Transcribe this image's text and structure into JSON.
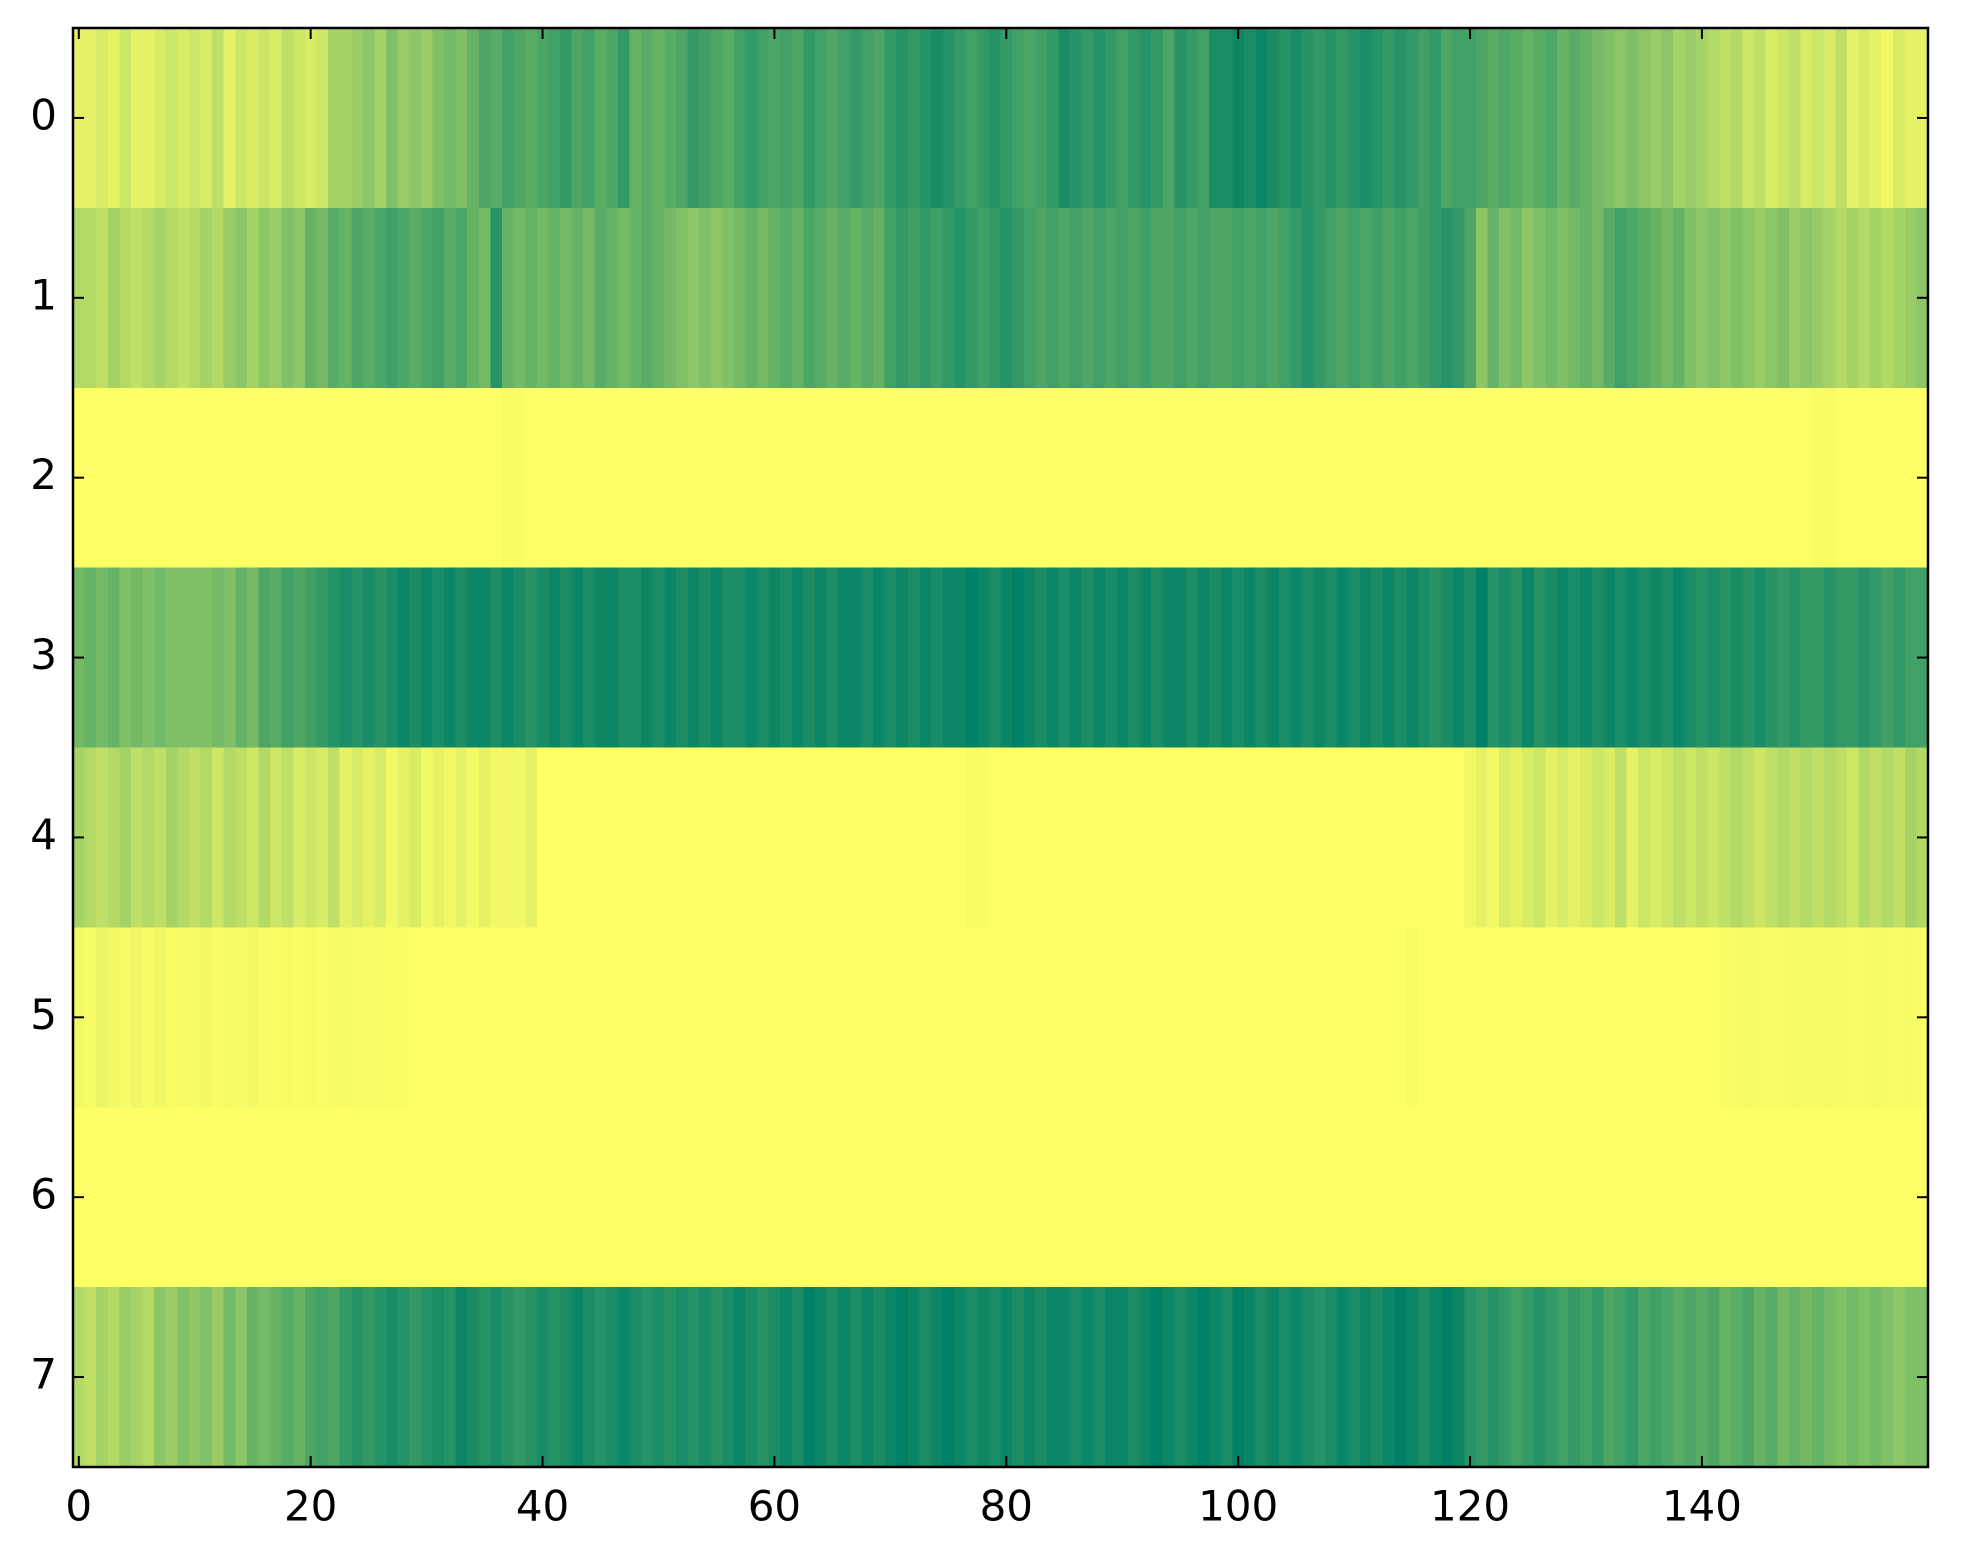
{
  "chart_data": {
    "type": "heatmap",
    "colormap": [
      "#ffff66",
      "#008066"
    ],
    "clim": [
      0,
      1
    ],
    "xlim": [
      -0.5,
      159.5
    ],
    "xticks": [
      0,
      20,
      40,
      60,
      80,
      100,
      120,
      140
    ],
    "ylim": [
      7.5,
      -0.5
    ],
    "yticks": [
      0,
      1,
      2,
      3,
      4,
      5,
      6,
      7
    ],
    "values": [
      [
        0.1,
        0.1,
        0.15,
        0.1,
        0.2,
        0.1,
        0.1,
        0.15,
        0.2,
        0.15,
        0.2,
        0.15,
        0.25,
        0.1,
        0.2,
        0.15,
        0.2,
        0.15,
        0.25,
        0.2,
        0.15,
        0.2,
        0.35,
        0.35,
        0.4,
        0.45,
        0.35,
        0.5,
        0.4,
        0.45,
        0.4,
        0.5,
        0.55,
        0.5,
        0.6,
        0.7,
        0.65,
        0.75,
        0.7,
        0.65,
        0.7,
        0.75,
        0.8,
        0.7,
        0.75,
        0.65,
        0.7,
        0.8,
        0.6,
        0.65,
        0.6,
        0.65,
        0.7,
        0.8,
        0.75,
        0.7,
        0.65,
        0.75,
        0.8,
        0.75,
        0.7,
        0.75,
        0.7,
        0.8,
        0.75,
        0.7,
        0.75,
        0.8,
        0.75,
        0.7,
        0.8,
        0.85,
        0.8,
        0.85,
        0.9,
        0.85,
        0.8,
        0.75,
        0.8,
        0.85,
        0.8,
        0.75,
        0.7,
        0.75,
        0.8,
        0.9,
        0.85,
        0.8,
        0.85,
        0.8,
        0.75,
        0.8,
        0.85,
        0.8,
        0.7,
        0.85,
        0.8,
        0.75,
        0.9,
        0.9,
        0.95,
        0.9,
        0.95,
        0.9,
        0.85,
        0.9,
        0.85,
        0.8,
        0.85,
        0.8,
        0.85,
        0.9,
        0.85,
        0.8,
        0.85,
        0.8,
        0.75,
        0.8,
        0.7,
        0.75,
        0.75,
        0.7,
        0.65,
        0.7,
        0.65,
        0.6,
        0.65,
        0.7,
        0.6,
        0.65,
        0.6,
        0.55,
        0.5,
        0.45,
        0.5,
        0.45,
        0.4,
        0.45,
        0.35,
        0.4,
        0.35,
        0.3,
        0.25,
        0.3,
        0.2,
        0.25,
        0.15,
        0.2,
        0.25,
        0.15,
        0.2,
        0.15,
        0.25,
        0.1,
        0.15,
        0.1,
        0.05,
        0.15,
        0.1,
        0.1
      ],
      [
        0.3,
        0.3,
        0.25,
        0.35,
        0.3,
        0.25,
        0.3,
        0.35,
        0.3,
        0.25,
        0.3,
        0.35,
        0.3,
        0.4,
        0.45,
        0.35,
        0.45,
        0.4,
        0.5,
        0.45,
        0.6,
        0.55,
        0.65,
        0.6,
        0.7,
        0.65,
        0.7,
        0.75,
        0.7,
        0.65,
        0.7,
        0.75,
        0.65,
        0.7,
        0.6,
        0.55,
        0.85,
        0.6,
        0.55,
        0.6,
        0.55,
        0.6,
        0.55,
        0.6,
        0.55,
        0.65,
        0.6,
        0.55,
        0.6,
        0.65,
        0.6,
        0.55,
        0.5,
        0.45,
        0.5,
        0.45,
        0.5,
        0.55,
        0.6,
        0.55,
        0.6,
        0.65,
        0.6,
        0.7,
        0.65,
        0.6,
        0.65,
        0.6,
        0.65,
        0.6,
        0.75,
        0.8,
        0.75,
        0.8,
        0.75,
        0.8,
        0.85,
        0.8,
        0.75,
        0.8,
        0.85,
        0.8,
        0.75,
        0.7,
        0.75,
        0.7,
        0.75,
        0.7,
        0.75,
        0.7,
        0.75,
        0.7,
        0.75,
        0.7,
        0.7,
        0.75,
        0.7,
        0.75,
        0.7,
        0.7,
        0.75,
        0.7,
        0.75,
        0.7,
        0.75,
        0.8,
        0.85,
        0.8,
        0.75,
        0.7,
        0.75,
        0.7,
        0.75,
        0.7,
        0.75,
        0.7,
        0.75,
        0.8,
        0.85,
        0.8,
        0.7,
        0.45,
        0.6,
        0.5,
        0.55,
        0.45,
        0.5,
        0.55,
        0.5,
        0.55,
        0.6,
        0.55,
        0.65,
        0.75,
        0.7,
        0.65,
        0.6,
        0.55,
        0.6,
        0.5,
        0.45,
        0.5,
        0.45,
        0.5,
        0.45,
        0.4,
        0.45,
        0.5,
        0.4,
        0.45,
        0.4,
        0.35,
        0.3,
        0.35,
        0.3,
        0.35,
        0.3,
        0.35,
        0.4,
        0.45
      ],
      [
        0,
        0,
        0,
        0,
        0,
        0,
        0,
        0,
        0,
        0,
        0,
        0,
        0,
        0,
        0,
        0,
        0,
        0,
        0,
        0,
        0,
        0,
        0,
        0,
        0,
        0,
        0,
        0,
        0,
        0,
        0,
        0,
        0,
        0,
        0,
        0,
        0,
        0.02,
        0.02,
        0,
        0,
        0,
        0,
        0,
        0,
        0,
        0,
        0,
        0,
        0,
        0,
        0,
        0,
        0,
        0,
        0,
        0,
        0,
        0,
        0,
        0,
        0,
        0,
        0,
        0,
        0,
        0,
        0,
        0,
        0,
        0,
        0,
        0,
        0,
        0,
        0,
        0,
        0,
        0,
        0,
        0,
        0,
        0,
        0,
        0,
        0,
        0,
        0,
        0,
        0,
        0,
        0,
        0,
        0,
        0,
        0,
        0,
        0,
        0,
        0,
        0,
        0,
        0,
        0,
        0,
        0,
        0,
        0,
        0,
        0,
        0,
        0,
        0,
        0,
        0,
        0,
        0,
        0,
        0,
        0,
        0,
        0,
        0,
        0,
        0,
        0,
        0,
        0,
        0,
        0,
        0,
        0,
        0,
        0,
        0,
        0,
        0,
        0,
        0,
        0,
        0,
        0,
        0,
        0,
        0,
        0,
        0,
        0,
        0,
        0,
        0.02,
        0.02,
        0,
        0,
        0,
        0,
        0,
        0,
        0,
        0
      ],
      [
        0.55,
        0.6,
        0.55,
        0.6,
        0.5,
        0.55,
        0.5,
        0.55,
        0.5,
        0.5,
        0.5,
        0.5,
        0.55,
        0.5,
        0.6,
        0.55,
        0.7,
        0.65,
        0.75,
        0.7,
        0.75,
        0.8,
        0.85,
        0.9,
        0.85,
        0.9,
        0.85,
        0.9,
        0.95,
        0.9,
        0.95,
        0.9,
        0.95,
        0.9,
        0.95,
        0.95,
        0.9,
        0.95,
        0.9,
        0.85,
        0.9,
        0.95,
        0.9,
        0.95,
        0.9,
        0.95,
        0.95,
        0.9,
        0.9,
        0.95,
        0.9,
        0.95,
        0.9,
        0.95,
        0.9,
        0.95,
        0.9,
        0.9,
        0.95,
        0.9,
        0.95,
        0.9,
        0.95,
        0.9,
        0.95,
        0.9,
        0.95,
        0.95,
        0.9,
        0.95,
        0.9,
        0.95,
        0.9,
        0.95,
        0.9,
        0.95,
        0.95,
        1,
        0.95,
        0.9,
        0.95,
        1,
        0.95,
        0.9,
        0.95,
        0.9,
        0.95,
        0.9,
        0.95,
        0.9,
        0.95,
        0.9,
        0.95,
        0.9,
        0.95,
        0.95,
        0.9,
        0.95,
        0.9,
        0.95,
        0.9,
        0.95,
        0.9,
        0.95,
        0.9,
        0.95,
        0.9,
        0.95,
        0.9,
        0.95,
        0.9,
        0.95,
        0.9,
        0.95,
        0.9,
        0.95,
        0.9,
        0.85,
        0.9,
        0.95,
        0.9,
        1,
        0.85,
        0.9,
        0.85,
        0.95,
        0.85,
        0.9,
        0.95,
        0.9,
        0.95,
        0.9,
        0.95,
        0.9,
        0.95,
        0.9,
        0.95,
        0.9,
        0.95,
        0.9,
        0.85,
        0.9,
        0.85,
        0.9,
        0.85,
        0.9,
        0.85,
        0.8,
        0.85,
        0.8,
        0.8,
        0.85,
        0.8,
        0.8,
        0.85,
        0.8,
        0.75,
        0.8,
        0.75,
        0.75
      ],
      [
        0.35,
        0.3,
        0.25,
        0.3,
        0.35,
        0.25,
        0.3,
        0.25,
        0.35,
        0.3,
        0.25,
        0.3,
        0.2,
        0.3,
        0.25,
        0.2,
        0.3,
        0.2,
        0.25,
        0.15,
        0.2,
        0.15,
        0.25,
        0.1,
        0.15,
        0.1,
        0.15,
        0.05,
        0.1,
        0.15,
        0.05,
        0.1,
        0.05,
        0.1,
        0.05,
        0.1,
        0.05,
        0.05,
        0.05,
        0.1,
        0,
        0,
        0,
        0,
        0,
        0,
        0,
        0,
        0,
        0,
        0,
        0,
        0,
        0,
        0,
        0,
        0,
        0,
        0,
        0,
        0,
        0,
        0,
        0,
        0,
        0,
        0,
        0,
        0,
        0,
        0,
        0,
        0,
        0,
        0,
        0,
        0,
        0.02,
        0.02,
        0,
        0,
        0,
        0,
        0,
        0,
        0,
        0,
        0,
        0,
        0,
        0,
        0,
        0,
        0,
        0,
        0,
        0,
        0,
        0,
        0,
        0,
        0,
        0,
        0,
        0,
        0,
        0,
        0,
        0,
        0,
        0,
        0,
        0,
        0,
        0,
        0,
        0,
        0,
        0,
        0,
        0.05,
        0.1,
        0.05,
        0.15,
        0.1,
        0.15,
        0.2,
        0.1,
        0.15,
        0.1,
        0.15,
        0.2,
        0.15,
        0.25,
        0.1,
        0.2,
        0.15,
        0.2,
        0.25,
        0.2,
        0.25,
        0.2,
        0.25,
        0.3,
        0.25,
        0.2,
        0.25,
        0.3,
        0.25,
        0.3,
        0.25,
        0.3,
        0.25,
        0.2,
        0.3,
        0.25,
        0.3,
        0.25,
        0.35,
        0.3
      ],
      [
        0.05,
        0.03,
        0.08,
        0.05,
        0.03,
        0.06,
        0.03,
        0.05,
        0.02,
        0.04,
        0.03,
        0.05,
        0.02,
        0.04,
        0.03,
        0.05,
        0.02,
        0.01,
        0.02,
        0.01,
        0.02,
        0.01,
        0.03,
        0.04,
        0.02,
        0.03,
        0.02,
        0.01,
        0.01,
        0,
        0,
        0,
        0,
        0,
        0,
        0,
        0,
        0,
        0,
        0,
        0,
        0,
        0,
        0,
        0,
        0,
        0,
        0,
        0,
        0,
        0,
        0,
        0,
        0,
        0,
        0,
        0,
        0,
        0,
        0,
        0,
        0,
        0,
        0,
        0,
        0,
        0,
        0,
        0,
        0,
        0,
        0,
        0,
        0,
        0,
        0,
        0,
        0,
        0,
        0,
        0,
        0,
        0,
        0,
        0,
        0,
        0,
        0,
        0,
        0,
        0,
        0,
        0,
        0,
        0,
        0,
        0,
        0,
        0,
        0,
        0,
        0,
        0,
        0,
        0,
        0,
        0,
        0,
        0,
        0,
        0,
        0,
        0,
        0,
        0,
        0.02,
        0,
        0,
        0,
        0,
        0,
        0,
        0,
        0,
        0,
        0,
        0,
        0,
        0,
        0,
        0,
        0,
        0,
        0,
        0,
        0,
        0,
        0,
        0,
        0,
        0,
        0,
        0.02,
        0.03,
        0.04,
        0.03,
        0.02,
        0.03,
        0.04,
        0.03,
        0.03,
        0.04,
        0.03,
        0.02,
        0.03,
        0.04,
        0.03,
        0.02,
        0.03,
        0.02
      ],
      [
        0,
        0,
        0,
        0,
        0,
        0,
        0,
        0,
        0,
        0,
        0,
        0,
        0,
        0,
        0,
        0,
        0,
        0,
        0,
        0,
        0,
        0,
        0,
        0,
        0,
        0,
        0,
        0,
        0,
        0,
        0,
        0,
        0,
        0,
        0,
        0,
        0,
        0,
        0,
        0,
        0,
        0,
        0,
        0,
        0,
        0,
        0,
        0,
        0,
        0,
        0,
        0,
        0,
        0,
        0,
        0,
        0,
        0,
        0,
        0,
        0,
        0,
        0,
        0,
        0,
        0,
        0,
        0,
        0,
        0,
        0,
        0,
        0,
        0,
        0,
        0,
        0,
        0,
        0,
        0,
        0,
        0,
        0,
        0,
        0,
        0,
        0,
        0,
        0,
        0,
        0,
        0,
        0,
        0,
        0,
        0,
        0,
        0,
        0,
        0,
        0,
        0,
        0,
        0,
        0,
        0,
        0,
        0,
        0,
        0,
        0,
        0,
        0,
        0,
        0,
        0,
        0,
        0,
        0,
        0,
        0,
        0,
        0,
        0,
        0,
        0,
        0,
        0,
        0,
        0,
        0,
        0,
        0,
        0,
        0,
        0,
        0,
        0,
        0,
        0,
        0,
        0,
        0,
        0,
        0,
        0,
        0,
        0,
        0,
        0,
        0,
        0,
        0,
        0,
        0,
        0,
        0,
        0,
        0,
        0
      ],
      [
        0.3,
        0.25,
        0.35,
        0.3,
        0.4,
        0.35,
        0.3,
        0.45,
        0.4,
        0.5,
        0.45,
        0.5,
        0.4,
        0.55,
        0.45,
        0.6,
        0.55,
        0.6,
        0.65,
        0.6,
        0.7,
        0.75,
        0.7,
        0.8,
        0.85,
        0.8,
        0.85,
        0.9,
        0.85,
        0.8,
        0.85,
        0.9,
        0.85,
        0.95,
        0.9,
        0.85,
        0.9,
        0.85,
        0.8,
        0.85,
        0.9,
        0.85,
        0.9,
        0.95,
        0.9,
        0.85,
        0.9,
        0.95,
        0.9,
        0.85,
        0.9,
        0.85,
        0.9,
        0.85,
        0.9,
        0.85,
        0.9,
        0.95,
        0.9,
        0.85,
        0.9,
        0.95,
        0.9,
        1,
        0.95,
        0.9,
        0.95,
        0.9,
        0.95,
        0.9,
        0.95,
        1,
        0.95,
        0.9,
        0.95,
        1,
        0.95,
        0.9,
        0.95,
        0.9,
        0.95,
        0.9,
        0.95,
        0.9,
        0.95,
        0.95,
        0.9,
        0.95,
        0.9,
        0.95,
        0.95,
        0.9,
        0.95,
        1,
        0.95,
        0.9,
        0.95,
        1,
        0.95,
        0.9,
        1,
        0.95,
        0.9,
        0.95,
        0.9,
        0.95,
        0.9,
        0.85,
        0.9,
        0.95,
        0.9,
        0.95,
        0.9,
        0.95,
        1,
        0.95,
        0.9,
        0.95,
        1,
        0.95,
        0.85,
        0.8,
        0.85,
        0.8,
        0.75,
        0.8,
        0.85,
        0.8,
        0.75,
        0.8,
        0.75,
        0.8,
        0.7,
        0.75,
        0.8,
        0.7,
        0.75,
        0.7,
        0.65,
        0.7,
        0.65,
        0.7,
        0.6,
        0.65,
        0.7,
        0.6,
        0.65,
        0.55,
        0.6,
        0.55,
        0.6,
        0.55,
        0.5,
        0.55,
        0.5,
        0.55,
        0.5,
        0.45,
        0.5,
        0.5
      ]
    ]
  }
}
